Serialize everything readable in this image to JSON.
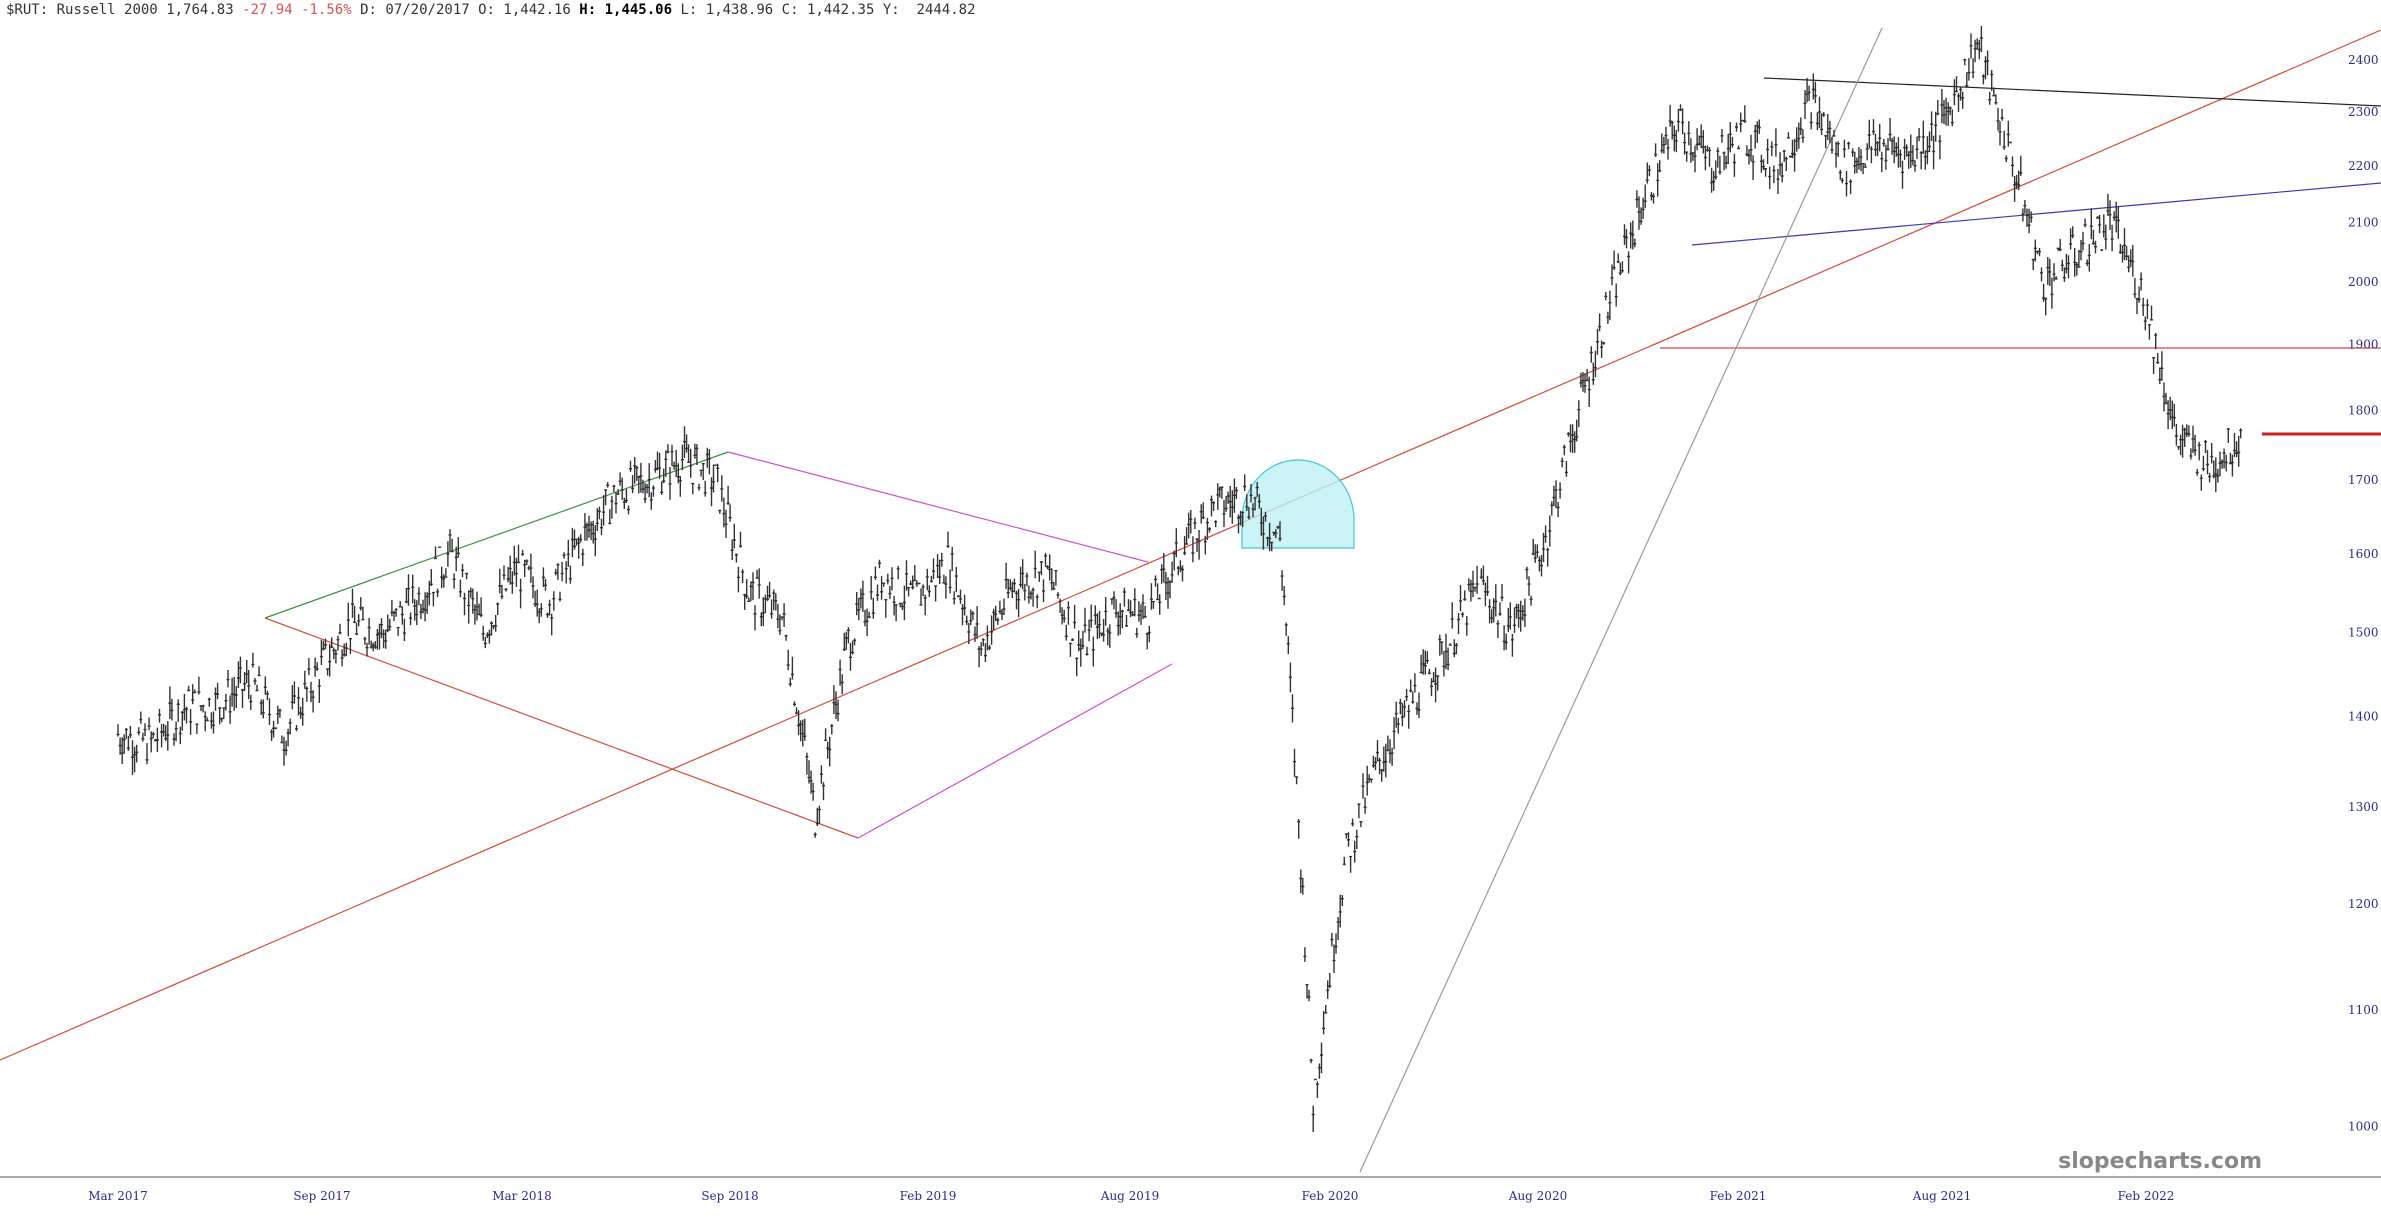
{
  "header": {
    "symbol": "$RUT:",
    "name": "Russell 2000",
    "last": "1,764.83",
    "change": "-27.94",
    "change_pct": "-1.56%",
    "date_label": "D:",
    "date": "07/20/2017",
    "open_label": "O:",
    "open": "1,442.16",
    "high_label": "H:",
    "high": "1,445.06",
    "low_label": "L:",
    "low": "1,438.96",
    "close_label": "C:",
    "close": "1,442.35",
    "y_label": "Y:",
    "y_value": "2444.82"
  },
  "watermark": "slopecharts.com",
  "colors": {
    "price": "#333333",
    "red_line": "#d64a3a",
    "green_line": "#3f8f3f",
    "magenta_line": "#d04fd0",
    "blue_line": "#3a3ab0",
    "black_line": "#222222",
    "gray_line": "#9a9a9a",
    "dome_fill": "#bff0f4",
    "dome_stroke": "#40c8d0",
    "axis_text": "#2b2b8c"
  },
  "chart_data": {
    "type": "candlestick",
    "title": "",
    "y_scale": "log",
    "ylim": [
      960,
      2460
    ],
    "y_ticks": [
      1000,
      1100,
      1200,
      1300,
      1400,
      1500,
      1600,
      1700,
      1800,
      1900,
      2000,
      2100,
      2200,
      2300,
      2400
    ],
    "x_ticks": [
      "Mar 2017",
      "Sep 2017",
      "Mar 2018",
      "Sep 2018",
      "Feb 2019",
      "Aug 2019",
      "Feb 2020",
      "Aug 2020",
      "Feb 2021",
      "Aug 2021",
      "Feb 2022"
    ],
    "price_path": [
      [
        "2017-03",
        1380
      ],
      [
        "2017-04",
        1370
      ],
      [
        "2017-05",
        1410
      ],
      [
        "2017-06",
        1415
      ],
      [
        "2017-07",
        1440
      ],
      [
        "2017-08",
        1380
      ],
      [
        "2017-09",
        1450
      ],
      [
        "2017-10",
        1510
      ],
      [
        "2017-11",
        1500
      ],
      [
        "2017-12",
        1540
      ],
      [
        "2018-01",
        1600
      ],
      [
        "2018-02",
        1500
      ],
      [
        "2018-03",
        1580
      ],
      [
        "2018-04",
        1540
      ],
      [
        "2018-05",
        1620
      ],
      [
        "2018-06",
        1680
      ],
      [
        "2018-07",
        1700
      ],
      [
        "2018-08",
        1730
      ],
      [
        "2018-09",
        1700
      ],
      [
        "2018-10",
        1550
      ],
      [
        "2018-11",
        1520
      ],
      [
        "2018-12",
        1290
      ],
      [
        "2019-01",
        1490
      ],
      [
        "2019-02",
        1570
      ],
      [
        "2019-03",
        1540
      ],
      [
        "2019-04",
        1590
      ],
      [
        "2019-05",
        1480
      ],
      [
        "2019-06",
        1560
      ],
      [
        "2019-07",
        1575
      ],
      [
        "2019-08",
        1480
      ],
      [
        "2019-09",
        1530
      ],
      [
        "2019-10",
        1520
      ],
      [
        "2019-11",
        1600
      ],
      [
        "2019-12",
        1660
      ],
      [
        "2020-01",
        1680
      ],
      [
        "2020-02",
        1620
      ],
      [
        "2020-03",
        1020
      ],
      [
        "2020-04",
        1250
      ],
      [
        "2020-05",
        1350
      ],
      [
        "2020-06",
        1420
      ],
      [
        "2020-07",
        1480
      ],
      [
        "2020-08",
        1560
      ],
      [
        "2020-09",
        1500
      ],
      [
        "2020-10",
        1620
      ],
      [
        "2020-11",
        1800
      ],
      [
        "2020-12",
        1980
      ],
      [
        "2021-01",
        2150
      ],
      [
        "2021-02",
        2280
      ],
      [
        "2021-03",
        2200
      ],
      [
        "2021-04",
        2260
      ],
      [
        "2021-05",
        2200
      ],
      [
        "2021-06",
        2320
      ],
      [
        "2021-07",
        2200
      ],
      [
        "2021-08",
        2240
      ],
      [
        "2021-09",
        2220
      ],
      [
        "2021-10",
        2280
      ],
      [
        "2021-11",
        2430
      ],
      [
        "2021-12",
        2220
      ],
      [
        "2022-01",
        2000
      ],
      [
        "2022-02",
        2050
      ],
      [
        "2022-03",
        2100
      ],
      [
        "2022-04",
        1980
      ],
      [
        "2022-05",
        1760
      ],
      [
        "2022-06",
        1720
      ],
      [
        "2022-07",
        1764.83
      ]
    ],
    "support_level": 1764.83,
    "horizontal_level": 1890
  }
}
